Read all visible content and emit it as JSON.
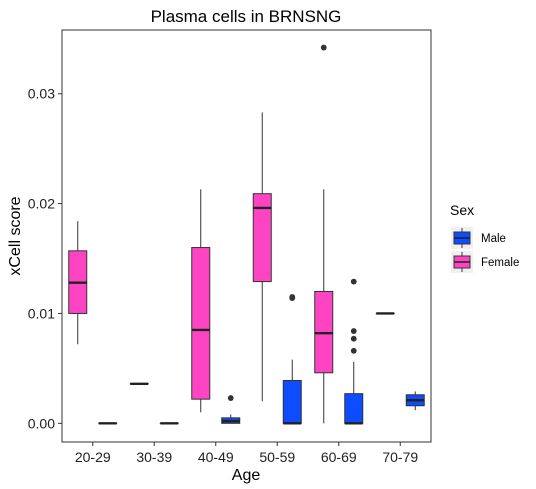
{
  "chart_data": {
    "type": "box",
    "title": "Plasma cells in BRNSNG",
    "xlabel": "Age",
    "ylabel": "xCell score",
    "categories": [
      "20-29",
      "30-39",
      "40-49",
      "50-59",
      "60-69",
      "70-79"
    ],
    "ylim": [
      -0.0017,
      0.0358
    ],
    "yticks": [
      0.0,
      0.01,
      0.02,
      0.03
    ],
    "ytick_labels": [
      "0.00",
      "0.01",
      "0.02",
      "0.03"
    ],
    "grid": false,
    "legend": {
      "title": "Sex",
      "position": "right",
      "entries": [
        {
          "label": "Male",
          "color": "#0d4dff"
        },
        {
          "label": "Female",
          "color": "#ff44c3"
        }
      ]
    },
    "series": [
      {
        "name": "Female",
        "color": "#ff44c3",
        "boxes": [
          {
            "category": "20-29",
            "whisker_low": 0.0072,
            "q1": 0.01,
            "median": 0.0128,
            "q3": 0.0157,
            "whisker_high": 0.0184,
            "outliers": []
          },
          {
            "category": "30-39",
            "whisker_low": 0.0036,
            "q1": 0.0036,
            "median": 0.0036,
            "q3": 0.0036,
            "whisker_high": 0.0036,
            "outliers": []
          },
          {
            "category": "40-49",
            "whisker_low": 0.001,
            "q1": 0.0022,
            "median": 0.0085,
            "q3": 0.016,
            "whisker_high": 0.0213,
            "outliers": []
          },
          {
            "category": "50-59",
            "whisker_low": 0.002,
            "q1": 0.0129,
            "median": 0.0196,
            "q3": 0.0209,
            "whisker_high": 0.0283,
            "outliers": []
          },
          {
            "category": "60-69",
            "whisker_low": 0.0,
            "q1": 0.0046,
            "median": 0.0082,
            "q3": 0.012,
            "whisker_high": 0.0213,
            "outliers": [
              0.0342
            ]
          },
          {
            "category": "70-79",
            "whisker_low": 0.01,
            "q1": 0.01,
            "median": 0.01,
            "q3": 0.01,
            "whisker_high": 0.01,
            "outliers": []
          }
        ]
      },
      {
        "name": "Male",
        "color": "#0d4dff",
        "boxes": [
          {
            "category": "20-29",
            "whisker_low": 0.0,
            "q1": 0.0,
            "median": 0.0,
            "q3": 0.0,
            "whisker_high": 0.0,
            "outliers": []
          },
          {
            "category": "30-39",
            "whisker_low": 0.0,
            "q1": 0.0,
            "median": 0.0,
            "q3": 0.0,
            "whisker_high": 0.0,
            "outliers": []
          },
          {
            "category": "40-49",
            "whisker_low": 0.0,
            "q1": 0.0,
            "median": 0.0002,
            "q3": 0.0005,
            "whisker_high": 0.0008,
            "outliers": [
              0.0023
            ]
          },
          {
            "category": "50-59",
            "whisker_low": 0.0,
            "q1": 0.0,
            "median": 0.0,
            "q3": 0.0039,
            "whisker_high": 0.0058,
            "outliers": [
              0.0114,
              0.0115
            ]
          },
          {
            "category": "60-69",
            "whisker_low": 0.0,
            "q1": 0.0,
            "median": 0.0,
            "q3": 0.0027,
            "whisker_high": 0.0056,
            "outliers": [
              0.0066,
              0.0077,
              0.0084,
              0.0129
            ]
          },
          {
            "category": "70-79",
            "whisker_low": 0.0012,
            "q1": 0.0016,
            "median": 0.0021,
            "q3": 0.0026,
            "whisker_high": 0.0029,
            "outliers": []
          }
        ]
      }
    ]
  }
}
